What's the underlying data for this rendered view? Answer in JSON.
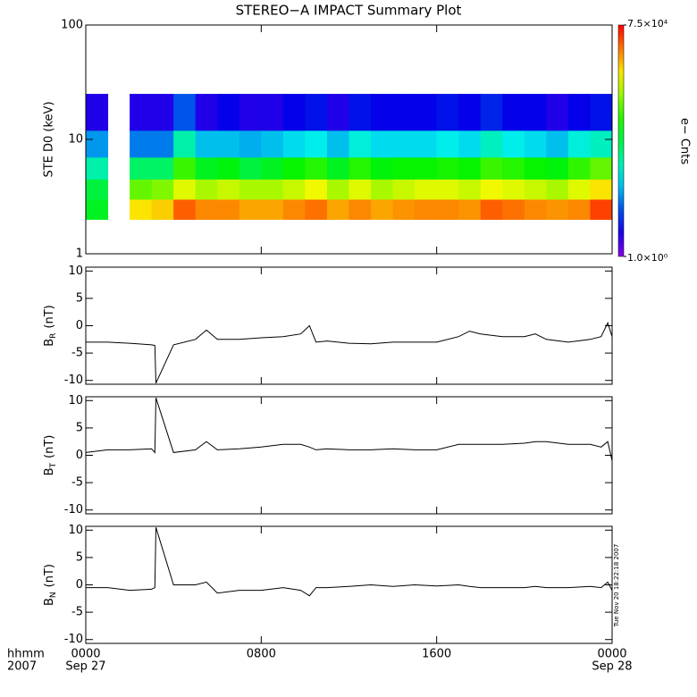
{
  "chart_data": [
    {
      "type": "heatmap",
      "title": "STEREO−A IMPACT Summary Plot",
      "ylabel": "STE D0 (keV)",
      "log_y": true,
      "ylim": [
        1,
        100
      ],
      "yticks": [
        1,
        10,
        100
      ],
      "xlim": [
        0,
        24
      ],
      "xticks": [
        0,
        8,
        16,
        24
      ],
      "x_edges": [
        0,
        1,
        2,
        3,
        4,
        5,
        6,
        7,
        8,
        9,
        10,
        11,
        12,
        13,
        14,
        15,
        16,
        17,
        18,
        19,
        20,
        21,
        22,
        23,
        24
      ],
      "y_edges": [
        2,
        3,
        4.5,
        7,
        12,
        25
      ],
      "values": [
        [
          400,
          300,
          100,
          20,
          3
        ],
        [
          null,
          null,
          null,
          null,
          null
        ],
        [
          8000,
          1500,
          200,
          15,
          3
        ],
        [
          10000,
          2000,
          200,
          15,
          3
        ],
        [
          30000,
          5000,
          1000,
          100,
          10
        ],
        [
          20000,
          3000,
          400,
          30,
          3
        ],
        [
          20000,
          4000,
          500,
          30,
          4
        ],
        [
          15000,
          3000,
          300,
          25,
          3
        ],
        [
          15000,
          3000,
          400,
          30,
          3
        ],
        [
          20000,
          4000,
          600,
          40,
          4
        ],
        [
          25000,
          6000,
          800,
          50,
          5
        ],
        [
          15000,
          3000,
          400,
          30,
          3
        ],
        [
          20000,
          5000,
          800,
          60,
          5
        ],
        [
          15000,
          3000,
          500,
          40,
          4
        ],
        [
          18000,
          4000,
          600,
          40,
          4
        ],
        [
          20000,
          5000,
          600,
          40,
          4
        ],
        [
          20000,
          5000,
          700,
          50,
          5
        ],
        [
          18000,
          4000,
          600,
          40,
          4
        ],
        [
          30000,
          6000,
          1000,
          80,
          6
        ],
        [
          25000,
          5000,
          800,
          50,
          4
        ],
        [
          20000,
          4000,
          600,
          40,
          4
        ],
        [
          18000,
          3000,
          500,
          30,
          3
        ],
        [
          20000,
          5000,
          900,
          60,
          4
        ],
        [
          40000,
          8000,
          1500,
          80,
          5
        ]
      ],
      "clim": [
        1,
        75000
      ],
      "cticks": [
        {
          "value": 1,
          "label": "1.0×10⁰"
        },
        {
          "value": 75000,
          "label": "7.5×10⁴"
        }
      ],
      "clabel": "e− Cnts"
    },
    {
      "type": "line",
      "ylabel": "B",
      "ylabel_sub": "R",
      "ylabel_unit": "(nT)",
      "ylim": [
        -10.7,
        10.7
      ],
      "yticks": [
        -10,
        -5,
        0,
        5,
        10
      ],
      "xlim": [
        0,
        24
      ],
      "xticks": [
        0,
        8,
        16,
        24
      ],
      "x": [
        0,
        1,
        2,
        3,
        3.15,
        3.2,
        4,
        5,
        5.5,
        6,
        7,
        8,
        9,
        9.8,
        10.2,
        10.5,
        11,
        12,
        13,
        14,
        15,
        16,
        17,
        17.5,
        18,
        19,
        20,
        20.5,
        21,
        22,
        23,
        23.5,
        23.8,
        24
      ],
      "series": [
        {
          "color": "#000000",
          "values": [
            -3,
            -3,
            -3.2,
            -3.5,
            -3.6,
            -10.5,
            -3.5,
            -2.5,
            -0.8,
            -2.5,
            -2.5,
            -2.2,
            -2,
            -1.5,
            0,
            -3,
            -2.8,
            -3.2,
            -3.3,
            -3,
            -3,
            -3,
            -2,
            -1,
            -1.5,
            -2,
            -2,
            -1.5,
            -2.5,
            -3,
            -2.5,
            -2,
            0.5,
            -2
          ]
        }
      ]
    },
    {
      "type": "line",
      "ylabel": "B",
      "ylabel_sub": "T",
      "ylabel_unit": "(nT)",
      "ylim": [
        -10.7,
        10.7
      ],
      "yticks": [
        -10,
        -5,
        0,
        5,
        10
      ],
      "xlim": [
        0,
        24
      ],
      "xticks": [
        0,
        8,
        16,
        24
      ],
      "x": [
        0,
        1,
        2,
        3,
        3.15,
        3.2,
        4,
        5,
        5.5,
        6,
        7,
        8,
        9,
        9.8,
        10.2,
        10.5,
        11,
        12,
        13,
        14,
        15,
        16,
        17,
        17.5,
        18,
        19,
        20,
        20.5,
        21,
        22,
        23,
        23.5,
        23.8,
        24
      ],
      "series": [
        {
          "color": "#000000",
          "values": [
            0.5,
            1,
            1,
            1.2,
            0.5,
            10.5,
            0.5,
            1,
            2.5,
            1,
            1.2,
            1.5,
            2,
            2,
            1.5,
            1,
            1.2,
            1,
            1,
            1.2,
            1,
            1,
            2,
            2,
            2,
            2,
            2.2,
            2.5,
            2.5,
            2,
            2,
            1.5,
            2.5,
            -1
          ]
        }
      ]
    },
    {
      "type": "line",
      "ylabel": "B",
      "ylabel_sub": "N",
      "ylabel_unit": "(nT)",
      "ylim": [
        -10.7,
        10.7
      ],
      "yticks": [
        -10,
        -5,
        0,
        5,
        10
      ],
      "xlim": [
        0,
        24
      ],
      "x": [
        0,
        1,
        2,
        3,
        3.15,
        3.2,
        4,
        5,
        5.5,
        6,
        7,
        8,
        9,
        9.8,
        10.2,
        10.5,
        11,
        12,
        13,
        14,
        15,
        16,
        17,
        17.5,
        18,
        19,
        20,
        20.5,
        21,
        22,
        23,
        23.5,
        23.8,
        24
      ],
      "series": [
        {
          "color": "#000000",
          "values": [
            -0.5,
            -0.5,
            -1,
            -0.8,
            -0.5,
            10.5,
            0,
            0,
            0.5,
            -1.5,
            -1,
            -1,
            -0.5,
            -1,
            -2,
            -0.5,
            -0.5,
            -0.3,
            0,
            -0.3,
            0,
            -0.2,
            0,
            -0.3,
            -0.5,
            -0.5,
            -0.5,
            -0.3,
            -0.5,
            -0.5,
            -0.3,
            -0.5,
            0.5,
            -1
          ]
        }
      ],
      "xticks": [
        {
          "value": 0,
          "label": "0000"
        },
        {
          "value": 8,
          "label": "0800"
        },
        {
          "value": 16,
          "label": "1600"
        },
        {
          "value": 24,
          "label": "0000"
        }
      ],
      "xtick_dates": [
        {
          "value": 0,
          "label": "Sep 27"
        },
        {
          "value": 24,
          "label": "Sep 28"
        }
      ],
      "xlabel": "hhmm",
      "xlabel_year": "2007",
      "stamp": "Tue Nov 20 18:22:18 2007"
    }
  ]
}
